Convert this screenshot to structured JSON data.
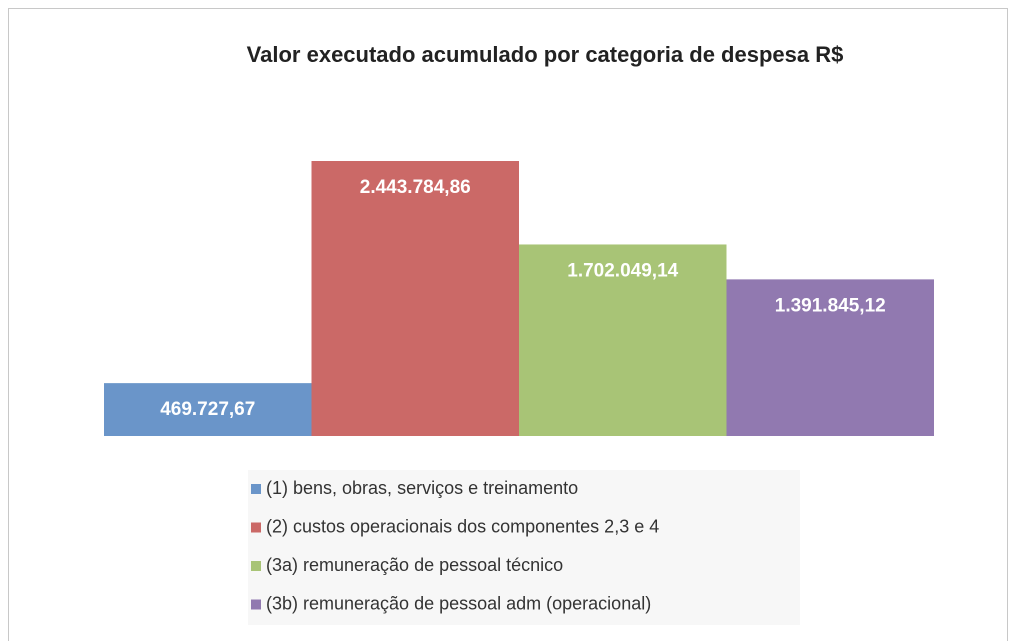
{
  "chart_data": {
    "type": "bar",
    "title": "Valor executado acumulado por categoria de despesa R$",
    "categories": [
      null
    ],
    "series": [
      {
        "name": "(1) bens, obras, serviços e treinamento",
        "color": "#6a95c9",
        "values": [
          469727.67
        ],
        "value_labels": [
          "469.727,67"
        ]
      },
      {
        "name": "(2) custos operacionais dos componentes 2,3 e 4",
        "color": "#cb6967",
        "values": [
          2443784.86
        ],
        "value_labels": [
          "2.443.784,86"
        ]
      },
      {
        "name": "(3a) remuneração de pessoal técnico",
        "color": "#a8c476",
        "values": [
          1702049.14
        ],
        "value_labels": [
          "1.702.049,14"
        ]
      },
      {
        "name": "(3b) remuneração de pessoal adm (operacional)",
        "color": "#9179b0",
        "values": [
          1391845.12
        ],
        "value_labels": [
          "1.391.845,12"
        ]
      }
    ],
    "legend": "bottom"
  }
}
